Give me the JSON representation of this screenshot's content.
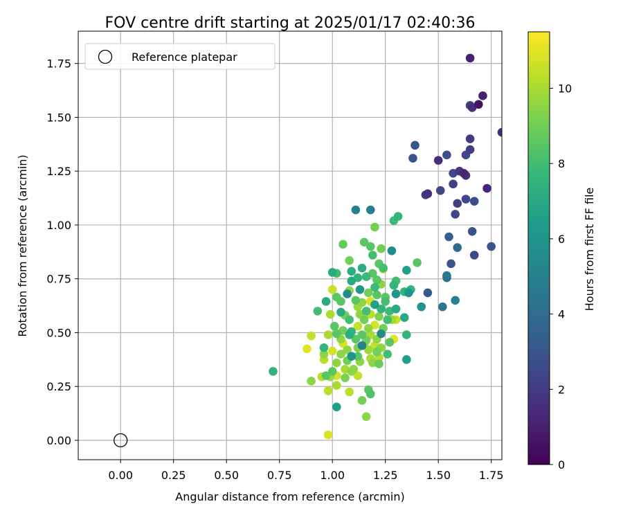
{
  "chart_data": {
    "type": "scatter",
    "title": "FOV centre drift starting at 2025/01/17 02:40:36",
    "xlabel": "Angular distance from reference (arcmin)",
    "ylabel": "Rotation from reference (arcmin)",
    "xlim": [
      -0.2,
      1.8
    ],
    "ylim": [
      -0.09,
      1.9
    ],
    "xticks": [
      "0.00",
      "0.25",
      "0.50",
      "0.75",
      "1.00",
      "1.25",
      "1.50",
      "1.75"
    ],
    "yticks": [
      "0.00",
      "0.25",
      "0.50",
      "0.75",
      "1.00",
      "1.25",
      "1.50",
      "1.75"
    ],
    "grid": true,
    "legend": {
      "placement": "top-left",
      "entries": [
        {
          "label": "Reference platepar"
        }
      ]
    },
    "reference_point": {
      "x": 0.0,
      "y": 0.0
    },
    "colorbar": {
      "label": "Hours from first FF file",
      "range": [
        0,
        11.5
      ],
      "ticks": [
        "0",
        "2",
        "4",
        "6",
        "8",
        "10"
      ],
      "colormap": "viridis"
    },
    "points": [
      [
        1.65,
        1.775,
        1.0
      ],
      [
        1.71,
        1.6,
        1.0
      ],
      [
        1.69,
        1.56,
        0.6
      ],
      [
        1.66,
        1.545,
        1.5
      ],
      [
        1.65,
        1.555,
        2.0
      ],
      [
        1.8,
        1.43,
        1.5
      ],
      [
        1.65,
        1.4,
        2.0
      ],
      [
        1.65,
        1.35,
        2.2
      ],
      [
        1.63,
        1.325,
        2.5
      ],
      [
        1.54,
        1.325,
        2.8
      ],
      [
        1.5,
        1.3,
        1.5
      ],
      [
        1.39,
        1.37,
        3.0
      ],
      [
        1.38,
        1.31,
        3.0
      ],
      [
        1.6,
        1.25,
        2.0
      ],
      [
        1.57,
        1.24,
        2.5
      ],
      [
        1.62,
        1.24,
        1.2
      ],
      [
        1.63,
        1.23,
        1.6
      ],
      [
        1.57,
        1.19,
        2.2
      ],
      [
        1.73,
        1.17,
        1.2
      ],
      [
        1.51,
        1.16,
        2.5
      ],
      [
        1.45,
        1.145,
        1.5
      ],
      [
        1.44,
        1.14,
        2.0
      ],
      [
        1.63,
        1.12,
        2.5
      ],
      [
        1.67,
        1.11,
        2.8
      ],
      [
        1.59,
        1.1,
        2.2
      ],
      [
        1.58,
        1.05,
        2.5
      ],
      [
        1.66,
        0.97,
        3.0
      ],
      [
        1.75,
        0.9,
        3.0
      ],
      [
        1.55,
        0.945,
        3.5
      ],
      [
        1.59,
        0.895,
        4.0
      ],
      [
        1.56,
        0.82,
        3.0
      ],
      [
        1.67,
        0.86,
        2.5
      ],
      [
        1.54,
        0.765,
        4.5
      ],
      [
        1.54,
        0.755,
        4.5
      ],
      [
        1.45,
        0.685,
        3.2
      ],
      [
        1.58,
        0.65,
        5.0
      ],
      [
        1.52,
        0.62,
        4.5
      ],
      [
        1.42,
        0.62,
        6.0
      ],
      [
        1.36,
        0.685,
        6.0
      ],
      [
        1.35,
        0.79,
        6.5
      ],
      [
        1.4,
        0.825,
        8.5
      ],
      [
        1.37,
        0.7,
        7.5
      ],
      [
        1.31,
        1.04,
        7.5
      ],
      [
        1.29,
        1.02,
        7.8
      ],
      [
        1.11,
        1.07,
        5.0
      ],
      [
        1.18,
        1.07,
        5.0
      ],
      [
        1.2,
        0.99,
        9.0
      ],
      [
        1.05,
        0.91,
        8.7
      ],
      [
        1.15,
        0.92,
        8.5
      ],
      [
        1.18,
        0.9,
        8.5
      ],
      [
        1.23,
        0.89,
        9.0
      ],
      [
        1.28,
        0.88,
        5.5
      ],
      [
        1.08,
        0.835,
        9.0
      ],
      [
        1.19,
        0.86,
        8.0
      ],
      [
        1.22,
        0.82,
        8.5
      ],
      [
        1.24,
        0.8,
        8.0
      ],
      [
        1.14,
        0.8,
        7.2
      ],
      [
        1.09,
        0.785,
        7.2
      ],
      [
        1.16,
        0.76,
        7.8
      ],
      [
        1.0,
        0.78,
        7.0
      ],
      [
        1.02,
        0.775,
        8.0
      ],
      [
        1.19,
        0.775,
        8.5
      ],
      [
        1.24,
        0.795,
        10.5
      ],
      [
        1.3,
        0.74,
        8.0
      ],
      [
        1.12,
        0.755,
        7.5
      ],
      [
        1.21,
        0.745,
        8.5
      ],
      [
        1.09,
        0.74,
        7.0
      ],
      [
        1.23,
        0.725,
        9.5
      ],
      [
        1.29,
        0.72,
        7.5
      ],
      [
        1.34,
        0.69,
        7.5
      ],
      [
        1.2,
        0.71,
        7.8
      ],
      [
        1.08,
        0.695,
        9.5
      ],
      [
        1.0,
        0.7,
        10.5
      ],
      [
        1.13,
        0.7,
        6.0
      ],
      [
        1.17,
        0.685,
        9.0
      ],
      [
        1.21,
        0.675,
        8.5
      ],
      [
        1.25,
        0.665,
        8.5
      ],
      [
        1.02,
        0.665,
        8.5
      ],
      [
        1.3,
        0.68,
        6.0
      ],
      [
        1.07,
        0.68,
        5.5
      ],
      [
        1.14,
        0.64,
        9.5
      ],
      [
        0.97,
        0.645,
        7.0
      ],
      [
        1.04,
        0.645,
        8.5
      ],
      [
        1.11,
        0.65,
        8.5
      ],
      [
        1.18,
        0.645,
        10.8
      ],
      [
        1.25,
        0.645,
        8.0
      ],
      [
        1.2,
        0.63,
        6.5
      ],
      [
        1.23,
        0.61,
        7.5
      ],
      [
        1.27,
        0.6,
        7.8
      ],
      [
        1.3,
        0.61,
        7.0
      ],
      [
        0.93,
        0.6,
        8.0
      ],
      [
        1.04,
        0.595,
        7.0
      ],
      [
        0.99,
        0.585,
        10.0
      ],
      [
        1.06,
        0.58,
        9.0
      ],
      [
        1.13,
        0.585,
        9.5
      ],
      [
        1.18,
        0.585,
        10.3
      ],
      [
        1.22,
        0.575,
        9.2
      ],
      [
        1.28,
        0.56,
        9.8
      ],
      [
        1.34,
        0.57,
        7.0
      ],
      [
        1.08,
        0.56,
        8.0
      ],
      [
        1.15,
        0.56,
        9.0
      ],
      [
        1.26,
        0.56,
        8.0
      ],
      [
        1.01,
        0.53,
        8.5
      ],
      [
        1.12,
        0.53,
        10.5
      ],
      [
        1.17,
        0.52,
        9.5
      ],
      [
        1.2,
        0.535,
        10.8
      ],
      [
        1.24,
        0.52,
        9.0
      ],
      [
        1.05,
        0.51,
        9.0
      ],
      [
        1.09,
        0.505,
        7.5
      ],
      [
        1.3,
        0.56,
        10.5
      ],
      [
        0.98,
        0.49,
        10.0
      ],
      [
        1.02,
        0.495,
        8.5
      ],
      [
        1.08,
        0.49,
        7.2
      ],
      [
        1.14,
        0.49,
        8.5
      ],
      [
        1.18,
        0.49,
        10.0
      ],
      [
        1.23,
        0.495,
        5.5
      ],
      [
        1.35,
        0.49,
        7.5
      ],
      [
        1.29,
        0.47,
        11.0
      ],
      [
        0.9,
        0.485,
        10.5
      ],
      [
        1.04,
        0.47,
        9.5
      ],
      [
        1.11,
        0.47,
        8.5
      ],
      [
        1.16,
        0.465,
        9.0
      ],
      [
        1.21,
        0.47,
        9.5
      ],
      [
        1.27,
        0.455,
        8.5
      ],
      [
        1.05,
        0.45,
        10.8
      ],
      [
        1.12,
        0.43,
        9.2
      ],
      [
        1.15,
        0.44,
        10.0
      ],
      [
        1.2,
        0.44,
        10.5
      ],
      [
        1.23,
        0.43,
        9.5
      ],
      [
        0.96,
        0.43,
        7.5
      ],
      [
        1.0,
        0.415,
        10.8
      ],
      [
        1.07,
        0.42,
        9.5
      ],
      [
        1.14,
        0.44,
        5.0
      ],
      [
        1.17,
        0.42,
        9.8
      ],
      [
        1.21,
        0.41,
        9.0
      ],
      [
        1.26,
        0.4,
        8.0
      ],
      [
        0.88,
        0.425,
        11.0
      ],
      [
        0.96,
        0.4,
        9.5
      ],
      [
        1.04,
        0.4,
        9.5
      ],
      [
        1.09,
        0.39,
        6.0
      ],
      [
        1.12,
        0.39,
        8.5
      ],
      [
        1.18,
        0.38,
        10.0
      ],
      [
        1.22,
        0.385,
        10.3
      ],
      [
        1.35,
        0.375,
        6.5
      ],
      [
        0.96,
        0.375,
        10.3
      ],
      [
        1.02,
        0.36,
        9.5
      ],
      [
        1.07,
        0.37,
        9.0
      ],
      [
        1.13,
        0.365,
        9.5
      ],
      [
        1.19,
        0.36,
        9.5
      ],
      [
        1.22,
        0.355,
        8.8
      ],
      [
        1.06,
        0.33,
        10.0
      ],
      [
        1.1,
        0.33,
        9.5
      ],
      [
        1.0,
        0.32,
        8.5
      ],
      [
        1.09,
        0.32,
        9.5
      ],
      [
        1.02,
        0.3,
        10.8
      ],
      [
        0.97,
        0.3,
        8.5
      ],
      [
        0.99,
        0.295,
        9.8
      ],
      [
        1.06,
        0.29,
        9.2
      ],
      [
        1.12,
        0.3,
        10.5
      ],
      [
        0.9,
        0.275,
        9.5
      ],
      [
        0.95,
        0.295,
        10.3
      ],
      [
        1.02,
        0.255,
        10.0
      ],
      [
        0.98,
        0.23,
        10.3
      ],
      [
        1.08,
        0.225,
        10.3
      ],
      [
        1.17,
        0.235,
        8.5
      ],
      [
        1.18,
        0.215,
        8.2
      ],
      [
        1.14,
        0.185,
        9.0
      ],
      [
        1.02,
        0.155,
        6.5
      ],
      [
        1.16,
        0.11,
        9.5
      ],
      [
        0.98,
        0.025,
        10.8
      ],
      [
        0.72,
        0.32,
        7.5
      ],
      [
        1.29,
        0.72,
        9.5
      ],
      [
        1.12,
        0.62,
        9.8
      ],
      [
        1.16,
        0.6,
        8.0
      ]
    ]
  }
}
